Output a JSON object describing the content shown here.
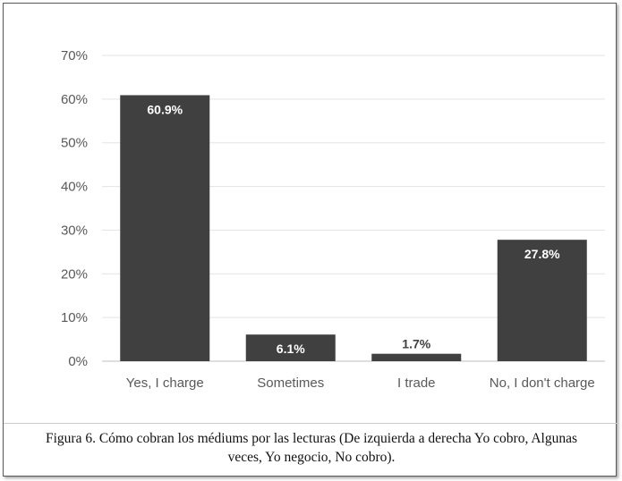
{
  "chart_data": {
    "type": "bar",
    "categories": [
      "Yes, I charge",
      "Sometimes",
      "I trade",
      "No, I don't charge"
    ],
    "values": [
      60.9,
      6.1,
      1.7,
      27.8
    ],
    "data_labels": [
      "60.9%",
      "6.1%",
      "1.7%",
      "27.8%"
    ],
    "yticks": [
      "0%",
      "10%",
      "20%",
      "30%",
      "40%",
      "50%",
      "60%",
      "70%"
    ],
    "ylim": [
      0,
      70
    ],
    "grid": true,
    "title": "",
    "xlabel": "",
    "ylabel": "",
    "bar_color": "#404040",
    "label_inside_color": "#ffffff",
    "label_outside_color": "#404040"
  },
  "caption": {
    "line1": "Figura 6. Cómo cobran los médiums por las lecturas (De izquierda a derecha Yo cobro, Algunas",
    "line2": "veces, Yo negocio, No cobro)."
  }
}
